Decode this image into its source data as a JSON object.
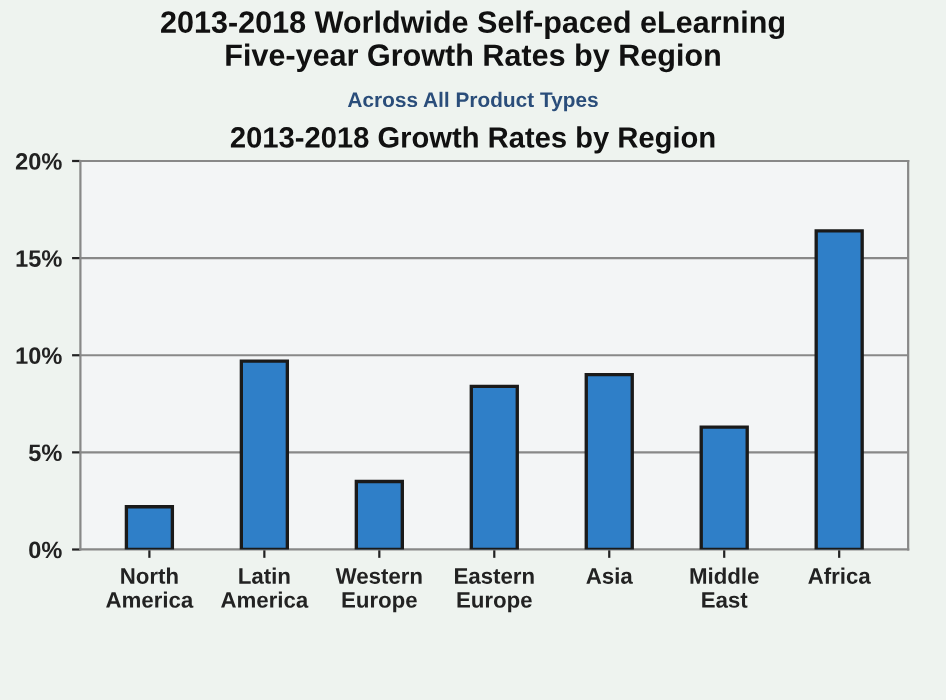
{
  "chart_data": {
    "type": "bar",
    "title": "2013-2018 Worldwide Self-paced eLearning\nFive-year Growth Rates by Region",
    "subtitle": "Across All Product Types",
    "annotations": [
      "2013-2018 Growth Rates by Region"
    ],
    "categories": [
      "North America",
      "Latin America",
      "Western Europe",
      "Eastern Europe",
      "Asia",
      "Middle East",
      "Africa"
    ],
    "values": [
      2.2,
      9.7,
      3.5,
      8.4,
      9.0,
      6.3,
      16.4
    ],
    "color": "#2f7fc8",
    "ylim": [
      0,
      20
    ],
    "yticks": [
      {
        "value": 0,
        "label": "0%"
      },
      {
        "value": 5,
        "label": "5%"
      },
      {
        "value": 10,
        "label": "10%"
      },
      {
        "value": 15,
        "label": "15%"
      },
      {
        "value": 20,
        "label": "20%"
      }
    ],
    "grid": "y"
  }
}
